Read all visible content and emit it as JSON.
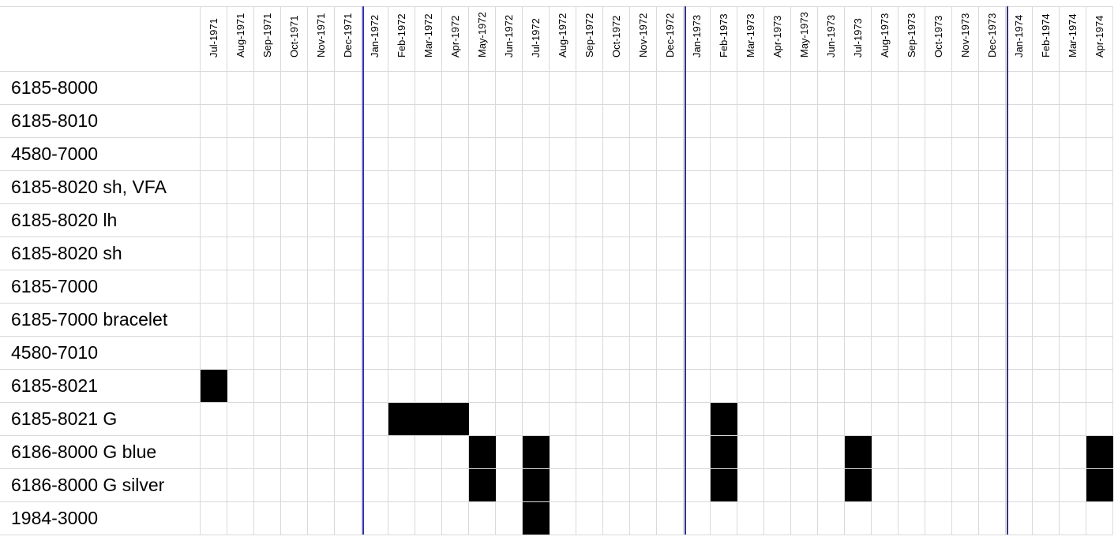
{
  "header": {
    "months": [
      "Jul-1971",
      "Aug-1971",
      "Sep-1971",
      "Oct-1971",
      "Nov-1971",
      "Dec-1971",
      "Jan-1972",
      "Feb-1972",
      "Mar-1972",
      "Apr-1972",
      "May-1972",
      "Jun-1972",
      "Jul-1972",
      "Aug-1972",
      "Sep-1972",
      "Oct-1972",
      "Nov-1972",
      "Dec-1972",
      "Jan-1973",
      "Feb-1973",
      "Mar-1973",
      "Apr-1973",
      "May-1973",
      "Jun-1973",
      "Jul-1973",
      "Aug-1973",
      "Sep-1973",
      "Oct-1973",
      "Nov-1973",
      "Dec-1973",
      "Jan-1974",
      "Feb-1974",
      "Mar-1974",
      "Apr-1974"
    ]
  },
  "rows": [
    {
      "label": "6185-8000",
      "cells": [
        0,
        0,
        0,
        0,
        0,
        0,
        0,
        0,
        0,
        0,
        0,
        0,
        0,
        0,
        0,
        0,
        0,
        0,
        0,
        0,
        0,
        0,
        0,
        0,
        0,
        0,
        0,
        0,
        0,
        0,
        0,
        0,
        0,
        0
      ]
    },
    {
      "label": "6185-8010",
      "cells": [
        0,
        0,
        0,
        0,
        0,
        0,
        0,
        0,
        0,
        0,
        0,
        0,
        0,
        0,
        0,
        0,
        0,
        0,
        0,
        0,
        0,
        0,
        0,
        0,
        0,
        0,
        0,
        0,
        0,
        0,
        0,
        0,
        0,
        0
      ]
    },
    {
      "label": "4580-7000",
      "cells": [
        0,
        0,
        0,
        0,
        0,
        0,
        0,
        0,
        0,
        0,
        0,
        0,
        0,
        0,
        0,
        0,
        0,
        0,
        0,
        0,
        0,
        0,
        0,
        0,
        0,
        0,
        0,
        0,
        0,
        0,
        0,
        0,
        0,
        0
      ]
    },
    {
      "label": "6185-8020 sh, VFA",
      "cells": [
        0,
        0,
        0,
        0,
        0,
        0,
        0,
        0,
        0,
        0,
        0,
        0,
        0,
        0,
        0,
        0,
        0,
        0,
        0,
        0,
        0,
        0,
        0,
        0,
        0,
        0,
        0,
        0,
        0,
        0,
        0,
        0,
        0,
        0
      ]
    },
    {
      "label": "6185-8020 lh",
      "cells": [
        0,
        0,
        0,
        0,
        0,
        0,
        0,
        0,
        0,
        0,
        0,
        0,
        0,
        0,
        0,
        0,
        0,
        0,
        0,
        0,
        0,
        0,
        0,
        0,
        0,
        0,
        0,
        0,
        0,
        0,
        0,
        0,
        0,
        0
      ]
    },
    {
      "label": "6185-8020 sh",
      "cells": [
        0,
        0,
        0,
        0,
        0,
        0,
        0,
        0,
        0,
        0,
        0,
        0,
        0,
        0,
        0,
        0,
        0,
        0,
        0,
        0,
        0,
        0,
        0,
        0,
        0,
        0,
        0,
        0,
        0,
        0,
        0,
        0,
        0,
        0
      ]
    },
    {
      "label": "6185-7000",
      "cells": [
        0,
        0,
        0,
        0,
        0,
        0,
        0,
        0,
        0,
        0,
        0,
        0,
        0,
        0,
        0,
        0,
        0,
        0,
        0,
        0,
        0,
        0,
        0,
        0,
        0,
        0,
        0,
        0,
        0,
        0,
        0,
        0,
        0,
        0
      ]
    },
    {
      "label": "6185-7000 bracelet",
      "cells": [
        0,
        0,
        0,
        0,
        0,
        0,
        0,
        0,
        0,
        0,
        0,
        0,
        0,
        0,
        0,
        0,
        0,
        0,
        0,
        0,
        0,
        0,
        0,
        0,
        0,
        0,
        0,
        0,
        0,
        0,
        0,
        0,
        0,
        0
      ]
    },
    {
      "label": "4580-7010",
      "cells": [
        0,
        0,
        0,
        0,
        0,
        0,
        0,
        0,
        0,
        0,
        0,
        0,
        0,
        0,
        0,
        0,
        0,
        0,
        0,
        0,
        0,
        0,
        0,
        0,
        0,
        0,
        0,
        0,
        0,
        0,
        0,
        0,
        0,
        0
      ]
    },
    {
      "label": "6185-8021",
      "cells": [
        1,
        0,
        0,
        0,
        0,
        0,
        0,
        0,
        0,
        0,
        0,
        0,
        0,
        0,
        0,
        0,
        0,
        0,
        0,
        0,
        0,
        0,
        0,
        0,
        0,
        0,
        0,
        0,
        0,
        0,
        0,
        0,
        0,
        0
      ]
    },
    {
      "label": "6185-8021 G",
      "cells": [
        0,
        0,
        0,
        0,
        0,
        0,
        0,
        1,
        1,
        1,
        0,
        0,
        0,
        0,
        0,
        0,
        0,
        0,
        0,
        1,
        0,
        0,
        0,
        0,
        0,
        0,
        0,
        0,
        0,
        0,
        0,
        0,
        0,
        0
      ]
    },
    {
      "label": "6186-8000 G blue",
      "cells": [
        0,
        0,
        0,
        0,
        0,
        0,
        0,
        0,
        0,
        0,
        1,
        0,
        1,
        0,
        0,
        0,
        0,
        0,
        0,
        1,
        0,
        0,
        0,
        0,
        1,
        0,
        0,
        0,
        0,
        0,
        0,
        0,
        0,
        1
      ]
    },
    {
      "label": "6186-8000 G silver",
      "cells": [
        0,
        0,
        0,
        0,
        0,
        0,
        0,
        0,
        0,
        0,
        1,
        0,
        1,
        0,
        0,
        0,
        0,
        0,
        0,
        1,
        0,
        0,
        0,
        0,
        1,
        0,
        0,
        0,
        0,
        0,
        0,
        0,
        0,
        1
      ]
    },
    {
      "label": "1984-3000",
      "cells": [
        0,
        0,
        0,
        0,
        0,
        0,
        0,
        0,
        0,
        0,
        0,
        0,
        1,
        0,
        0,
        0,
        0,
        0,
        0,
        0,
        0,
        0,
        0,
        0,
        0,
        0,
        0,
        0,
        0,
        0,
        0,
        0,
        0,
        0
      ]
    }
  ]
}
